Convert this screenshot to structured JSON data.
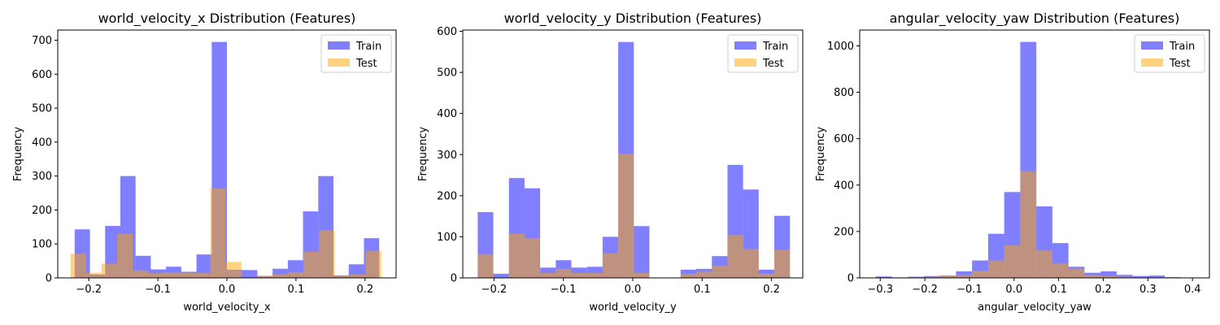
{
  "colors": {
    "train": "#0000ff",
    "train_alpha": 0.5,
    "test": "#ffa500",
    "test_alpha": 0.5,
    "frame": "#000000",
    "background": "#ffffff"
  },
  "chart_data": [
    {
      "type": "bar",
      "histogram": true,
      "title": "world_velocity_x Distribution (Features)",
      "xlabel": "world_velocity_x",
      "ylabel": "Frequency",
      "xlim": [
        -0.245,
        0.245
      ],
      "ylim": [
        0,
        730
      ],
      "xticks": [
        -0.2,
        -0.1,
        0.0,
        0.1,
        0.2
      ],
      "xtick_labels": [
        "−0.2",
        "−0.1",
        "0.0",
        "0.1",
        "0.2"
      ],
      "yticks": [
        0,
        100,
        200,
        300,
        400,
        500,
        600,
        700
      ],
      "ytick_labels": [
        "0",
        "100",
        "200",
        "300",
        "400",
        "500",
        "600",
        "700"
      ],
      "legend": {
        "position": "top-right",
        "entries": [
          "Train",
          "Test"
        ]
      },
      "series": [
        {
          "name": "Train",
          "bin_edges": [
            -0.2205,
            -0.1984,
            -0.1764,
            -0.1543,
            -0.1323,
            -0.1102,
            -0.0882,
            -0.0661,
            -0.0441,
            -0.022,
            0.0,
            0.022,
            0.0441,
            0.0661,
            0.0882,
            0.1102,
            0.1323,
            0.1543,
            0.1764,
            0.1984,
            0.2205
          ],
          "values": [
            143,
            10,
            153,
            300,
            65,
            25,
            33,
            18,
            69,
            695,
            24,
            23,
            5,
            27,
            52,
            196,
            300,
            7,
            40,
            117
          ]
        },
        {
          "name": "Test",
          "bin_edges": [
            -0.2265,
            -0.204,
            -0.1815,
            -0.159,
            -0.1365,
            -0.114,
            -0.0915,
            -0.069,
            -0.0465,
            -0.024,
            -0.0015,
            0.021,
            0.0435,
            0.066,
            0.0885,
            0.111,
            0.1335,
            0.156,
            0.1785,
            0.201,
            0.2235
          ],
          "values": [
            71,
            15,
            42,
            130,
            22,
            14,
            16,
            15,
            14,
            263,
            47,
            0,
            7,
            10,
            17,
            77,
            140,
            5,
            10,
            80
          ]
        }
      ]
    },
    {
      "type": "bar",
      "histogram": true,
      "title": "world_velocity_y Distribution (Features)",
      "xlabel": "world_velocity_y",
      "ylabel": "Frequency",
      "xlim": [
        -0.245,
        0.245
      ],
      "ylim": [
        0,
        603
      ],
      "xticks": [
        -0.2,
        -0.1,
        0.0,
        0.1,
        0.2
      ],
      "xtick_labels": [
        "−0.2",
        "−0.1",
        "0.0",
        "0.1",
        "0.2"
      ],
      "yticks": [
        0,
        100,
        200,
        300,
        400,
        500,
        600
      ],
      "ytick_labels": [
        "0",
        "100",
        "200",
        "300",
        "400",
        "500",
        "600"
      ],
      "legend": {
        "position": "top-right",
        "entries": [
          "Train",
          "Test"
        ]
      },
      "series": [
        {
          "name": "Train",
          "bin_edges": [
            -0.2235,
            -0.201,
            -0.1785,
            -0.156,
            -0.1335,
            -0.111,
            -0.0885,
            -0.066,
            -0.0435,
            -0.021,
            0.0015,
            0.024,
            0.0465,
            0.069,
            0.0915,
            0.114,
            0.1365,
            0.159,
            0.1815,
            0.204,
            0.2265
          ],
          "values": [
            160,
            10,
            243,
            218,
            25,
            43,
            25,
            27,
            100,
            574,
            126,
            0,
            0,
            20,
            22,
            53,
            275,
            215,
            20,
            151
          ]
        },
        {
          "name": "Test",
          "bin_edges": [
            -0.2235,
            -0.201,
            -0.1785,
            -0.156,
            -0.1335,
            -0.111,
            -0.0885,
            -0.066,
            -0.0435,
            -0.021,
            0.0015,
            0.024,
            0.0465,
            0.069,
            0.0915,
            0.114,
            0.1365,
            0.159,
            0.1815,
            0.204,
            0.2265
          ],
          "values": [
            58,
            0,
            108,
            97,
            12,
            22,
            12,
            12,
            60,
            302,
            12,
            0,
            0,
            10,
            15,
            30,
            105,
            70,
            10,
            68
          ]
        }
      ]
    },
    {
      "type": "bar",
      "histogram": true,
      "title": "angular_velocity_yaw Distribution (Features)",
      "xlabel": "angular_velocity_yaw",
      "ylabel": "Frequency",
      "xlim": [
        -0.346,
        0.438
      ],
      "ylim": [
        0,
        1068
      ],
      "xticks": [
        -0.3,
        -0.2,
        -0.1,
        0.0,
        0.1,
        0.2,
        0.3,
        0.4
      ],
      "xtick_labels": [
        "−0.3",
        "−0.2",
        "−0.1",
        "0.0",
        "0.1",
        "0.2",
        "0.3",
        "0.4"
      ],
      "yticks": [
        0,
        200,
        400,
        600,
        800,
        1000
      ],
      "ytick_labels": [
        "0",
        "200",
        "400",
        "600",
        "800",
        "1000"
      ],
      "legend": {
        "position": "top-right",
        "entries": [
          "Train",
          "Test"
        ]
      },
      "series": [
        {
          "name": "Train",
          "bin_edges": [
            -0.31,
            -0.274,
            -0.238,
            -0.202,
            -0.166,
            -0.13,
            -0.094,
            -0.058,
            -0.022,
            0.014,
            0.05,
            0.086,
            0.122,
            0.158,
            0.194,
            0.23,
            0.266,
            0.302,
            0.338,
            0.374,
            0.41
          ],
          "values": [
            6,
            2,
            5,
            8,
            10,
            28,
            75,
            190,
            370,
            1017,
            308,
            150,
            48,
            22,
            28,
            13,
            8,
            10,
            3,
            0
          ]
        },
        {
          "name": "Test",
          "bin_edges": [
            -0.31,
            -0.274,
            -0.238,
            -0.202,
            -0.166,
            -0.13,
            -0.094,
            -0.058,
            -0.022,
            0.014,
            0.05,
            0.086,
            0.122,
            0.158,
            0.194,
            0.23,
            0.266,
            0.302,
            0.338,
            0.374,
            0.41
          ],
          "values": [
            2,
            1,
            3,
            5,
            8,
            12,
            30,
            75,
            140,
            460,
            118,
            62,
            40,
            12,
            8,
            5,
            3,
            2,
            1,
            0
          ]
        }
      ]
    }
  ]
}
